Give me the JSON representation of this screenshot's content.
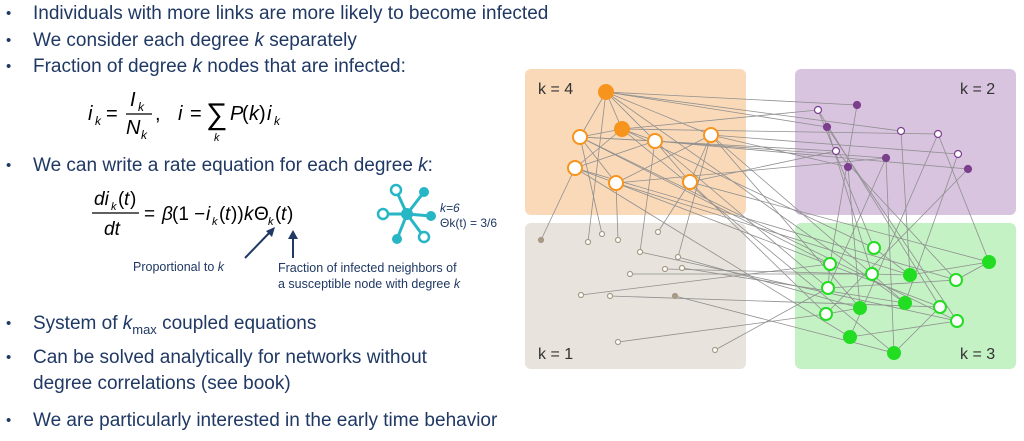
{
  "bullets": {
    "b1": "Individuals with more links are more likely to become infected",
    "b2_pre": "We consider each degree ",
    "b2_var": "k",
    "b2_post": " separately",
    "b3_pre": "Fraction of degree ",
    "b3_var": "k",
    "b3_post": " nodes that are infected:",
    "b4_pre": "We can write a rate equation for each degree ",
    "b4_var": "k",
    "b4_post": ":",
    "b5_pre": "System of ",
    "b5_var": "k",
    "b5_sub": "max",
    "b5_post": " coupled equations",
    "b6_line1": "Can be solved analytically for networks without",
    "b6_line2": "degree correlations (see book)",
    "b7": "We are particularly interested in the early time behavior",
    "marker": "•"
  },
  "annotations": {
    "proportional_pre": "Proportional to ",
    "proportional_var": "k",
    "fraction_line1": "Fraction of infected neighbors of",
    "fraction_line2_pre": "a susceptible node with degree ",
    "fraction_line2_var": "k"
  },
  "star_example": {
    "k_label": "k=6",
    "theta_label": "Θk(t) = 3/6"
  },
  "network": {
    "groups": [
      {
        "label": "k = 4",
        "color": "#f9d9b8",
        "node_color": "#f7941d"
      },
      {
        "label": "k = 2",
        "color": "#d9c4e0",
        "node_color": "#7b3f8c"
      },
      {
        "label": "k = 1",
        "color": "#e8e3dc",
        "node_color": "#a89b86"
      },
      {
        "label": "k = 3",
        "color": "#c4f2c4",
        "node_color": "#22dd22"
      }
    ],
    "edge_color": "#8f8f8f"
  }
}
